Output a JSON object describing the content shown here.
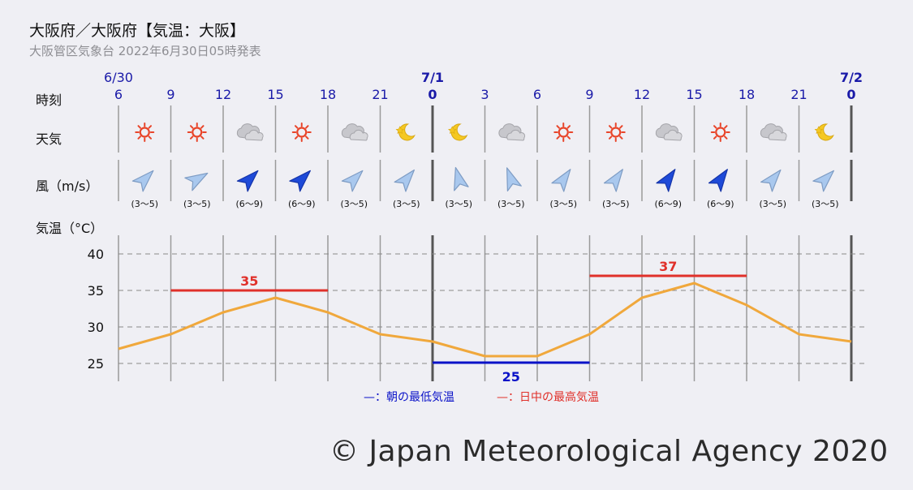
{
  "header": {
    "title": "大阪府／大阪府【気温：大阪】",
    "subtitle": "大阪管区気象台 2022年6月30日05時発表"
  },
  "labels": {
    "time": "時刻",
    "weather": "天気",
    "wind": "風（m/s）",
    "temperature": "気温（°C）"
  },
  "colors": {
    "hour_text": "#1a1aa8",
    "max_line": "#e0302a",
    "min_line": "#0a12c8",
    "temp_line": "#f0a83c",
    "wind_weak": "#a9c8ee",
    "wind_strong": "#1e4ad8",
    "sun": "#e8452a",
    "moon": "#f5c822",
    "cloud": "#c7c7cc"
  },
  "date_labels": [
    {
      "index": 0,
      "text": "6/30",
      "bold": false
    },
    {
      "index": 6,
      "text": "7/1",
      "bold": true
    },
    {
      "index": 14,
      "text": "7/2",
      "bold": true
    }
  ],
  "hours": [
    {
      "text": "6",
      "bold": false
    },
    {
      "text": "9",
      "bold": false
    },
    {
      "text": "12",
      "bold": false
    },
    {
      "text": "15",
      "bold": false
    },
    {
      "text": "18",
      "bold": false
    },
    {
      "text": "21",
      "bold": false
    },
    {
      "text": "0",
      "bold": true
    },
    {
      "text": "3",
      "bold": false
    },
    {
      "text": "6",
      "bold": false
    },
    {
      "text": "9",
      "bold": false
    },
    {
      "text": "12",
      "bold": false
    },
    {
      "text": "15",
      "bold": false
    },
    {
      "text": "18",
      "bold": false
    },
    {
      "text": "21",
      "bold": false
    },
    {
      "text": "0",
      "bold": true
    }
  ],
  "weather": [
    "sun-icon",
    "sun-icon",
    "cloud-icon",
    "sun-icon",
    "cloud-icon",
    "moon-icon",
    "moon-icon",
    "cloud-icon",
    "sun-icon",
    "sun-icon",
    "cloud-icon",
    "sun-icon",
    "cloud-icon",
    "moon-icon"
  ],
  "wind": [
    {
      "dir_deg": 45,
      "strong": false,
      "range": "(3～5)"
    },
    {
      "dir_deg": 60,
      "strong": false,
      "range": "(3～5)"
    },
    {
      "dir_deg": 45,
      "strong": true,
      "range": "(6～9)"
    },
    {
      "dir_deg": 45,
      "strong": true,
      "range": "(6～9)"
    },
    {
      "dir_deg": 45,
      "strong": false,
      "range": "(3～5)"
    },
    {
      "dir_deg": 40,
      "strong": false,
      "range": "(3～5)"
    },
    {
      "dir_deg": -15,
      "strong": false,
      "range": "(3～5)"
    },
    {
      "dir_deg": -20,
      "strong": false,
      "range": "(3～5)"
    },
    {
      "dir_deg": 35,
      "strong": false,
      "range": "(3～5)"
    },
    {
      "dir_deg": 35,
      "strong": false,
      "range": "(3～5)"
    },
    {
      "dir_deg": 35,
      "strong": true,
      "range": "(6～9)"
    },
    {
      "dir_deg": 35,
      "strong": true,
      "range": "(6～9)"
    },
    {
      "dir_deg": 40,
      "strong": false,
      "range": "(3～5)"
    },
    {
      "dir_deg": 45,
      "strong": false,
      "range": "(3～5)"
    }
  ],
  "chart_data": {
    "type": "line",
    "x": [
      "6/30 6",
      "9",
      "12",
      "15",
      "18",
      "21",
      "7/1 0",
      "3",
      "6",
      "9",
      "12",
      "15",
      "18",
      "21",
      "7/2 0"
    ],
    "series": [
      {
        "values": [
          27,
          29,
          32,
          34,
          32,
          29,
          28,
          26,
          26,
          29,
          34,
          36,
          33,
          29,
          28
        ]
      }
    ],
    "yticks": [
      25,
      30,
      35,
      40
    ],
    "ylim": [
      23,
      42
    ],
    "max_temps": [
      {
        "value": 35,
        "from_index": 1,
        "to_index": 4,
        "label": "35"
      },
      {
        "value": 37,
        "from_index": 9,
        "to_index": 12,
        "label": "37"
      }
    ],
    "min_temps": [
      {
        "value": 25,
        "from_index": 6,
        "to_index": 9,
        "label": "25"
      }
    ],
    "legend": {
      "min": "—：朝の最低気温",
      "max": "—：日中の最高気温"
    }
  },
  "footer": {
    "copyright": "© Japan Meteorological Agency 2020"
  }
}
